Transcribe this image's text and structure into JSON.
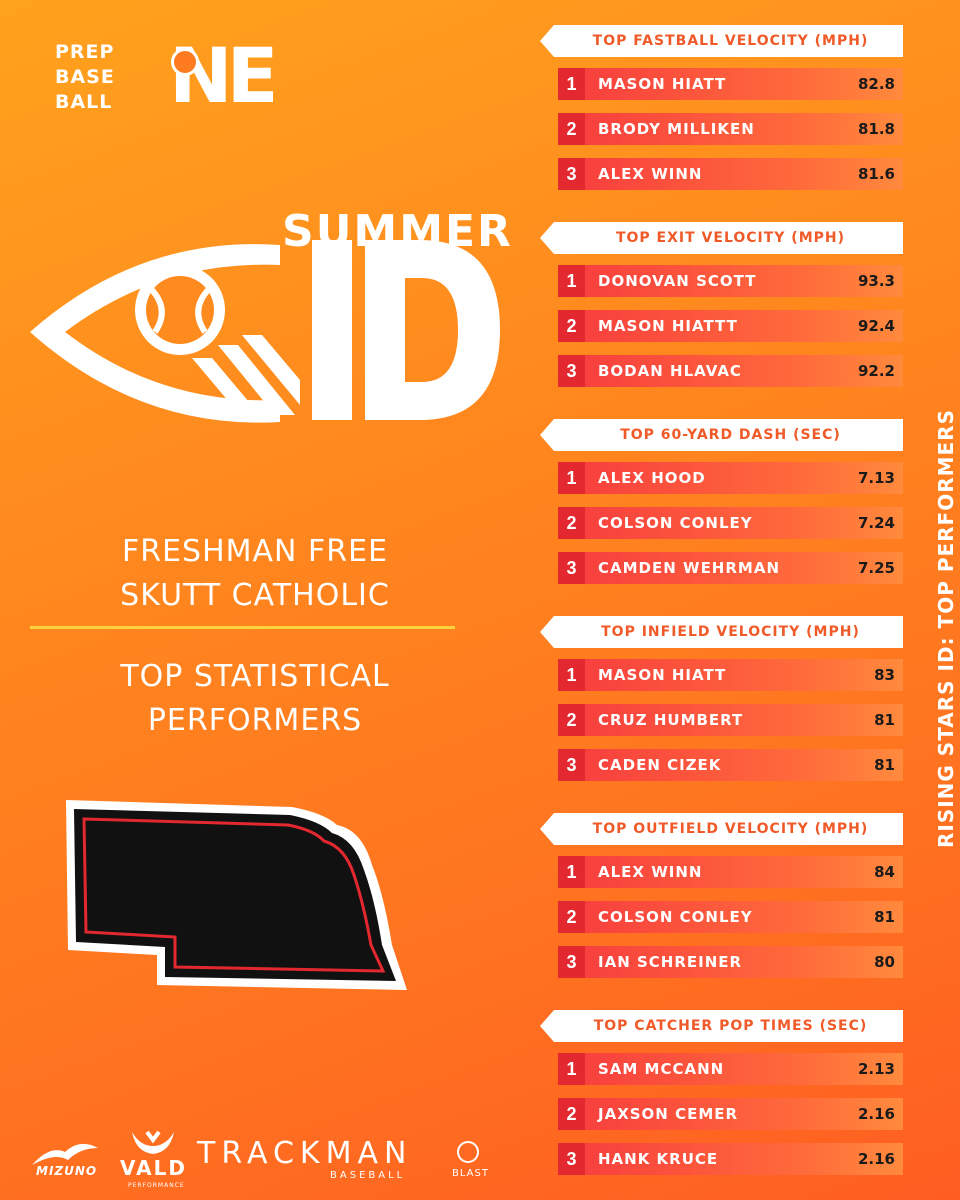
{
  "logo": {
    "line1": "PREP",
    "line2": "BASE",
    "line3": "BALL",
    "region": "NE"
  },
  "hero": {
    "summer": "SUMMER",
    "id": "ID"
  },
  "event": {
    "line1": "FRESHMAN FREE",
    "line2": "SKUTT CATHOLIC"
  },
  "subtitle": {
    "line1": "TOP STATISTICAL",
    "line2": "PERFORMERS"
  },
  "vertical_title": "RISING STARS ID: TOP PERFORMERS",
  "colors": {
    "accent": "#f05a28",
    "row_red": "#e3282f",
    "divider": "#ffd23e"
  },
  "sections": [
    {
      "title": "TOP FASTBALL VELOCITY (MPH)",
      "rows": [
        {
          "rank": "1",
          "name": "MASON HIATT",
          "value": "82.8"
        },
        {
          "rank": "2",
          "name": "BRODY MILLIKEN",
          "value": "81.8"
        },
        {
          "rank": "3",
          "name": "ALEX WINN",
          "value": "81.6"
        }
      ]
    },
    {
      "title": "TOP EXIT VELOCITY (MPH)",
      "rows": [
        {
          "rank": "1",
          "name": "DONOVAN SCOTT",
          "value": "93.3"
        },
        {
          "rank": "2",
          "name": "MASON HIATTT",
          "value": "92.4"
        },
        {
          "rank": "3",
          "name": "BODAN HLAVAC",
          "value": "92.2"
        }
      ]
    },
    {
      "title": "TOP 60-YARD DASH (SEC)",
      "rows": [
        {
          "rank": "1",
          "name": "ALEX HOOD",
          "value": "7.13"
        },
        {
          "rank": "2",
          "name": "COLSON CONLEY",
          "value": "7.24"
        },
        {
          "rank": "3",
          "name": "CAMDEN WEHRMAN",
          "value": "7.25"
        }
      ]
    },
    {
      "title": "TOP INFIELD VELOCITY (MPH)",
      "rows": [
        {
          "rank": "1",
          "name": "MASON HIATT",
          "value": "83"
        },
        {
          "rank": "2",
          "name": "CRUZ HUMBERT",
          "value": "81"
        },
        {
          "rank": "3",
          "name": "CADEN CIZEK",
          "value": "81"
        }
      ]
    },
    {
      "title": "TOP OUTFIELD VELOCITY (MPH)",
      "rows": [
        {
          "rank": "1",
          "name": "ALEX WINN",
          "value": "84"
        },
        {
          "rank": "2",
          "name": "COLSON CONLEY",
          "value": "81"
        },
        {
          "rank": "3",
          "name": "IAN SCHREINER",
          "value": "80"
        }
      ]
    },
    {
      "title": "TOP CATCHER POP TIMES (SEC)",
      "rows": [
        {
          "rank": "1",
          "name": "SAM MCCANN",
          "value": "2.13"
        },
        {
          "rank": "2",
          "name": "JAXSON CEMER",
          "value": "2.16"
        },
        {
          "rank": "3",
          "name": "HANK KRUCE",
          "value": "2.16"
        }
      ]
    }
  ],
  "sponsors": {
    "mizuno": "MIZUNO",
    "vald": "VALD",
    "vald_sub": "PERFORMANCE",
    "trackman": "TRACKMAN",
    "trackman_sub": "BASEBALL",
    "blast": "BLAST"
  }
}
